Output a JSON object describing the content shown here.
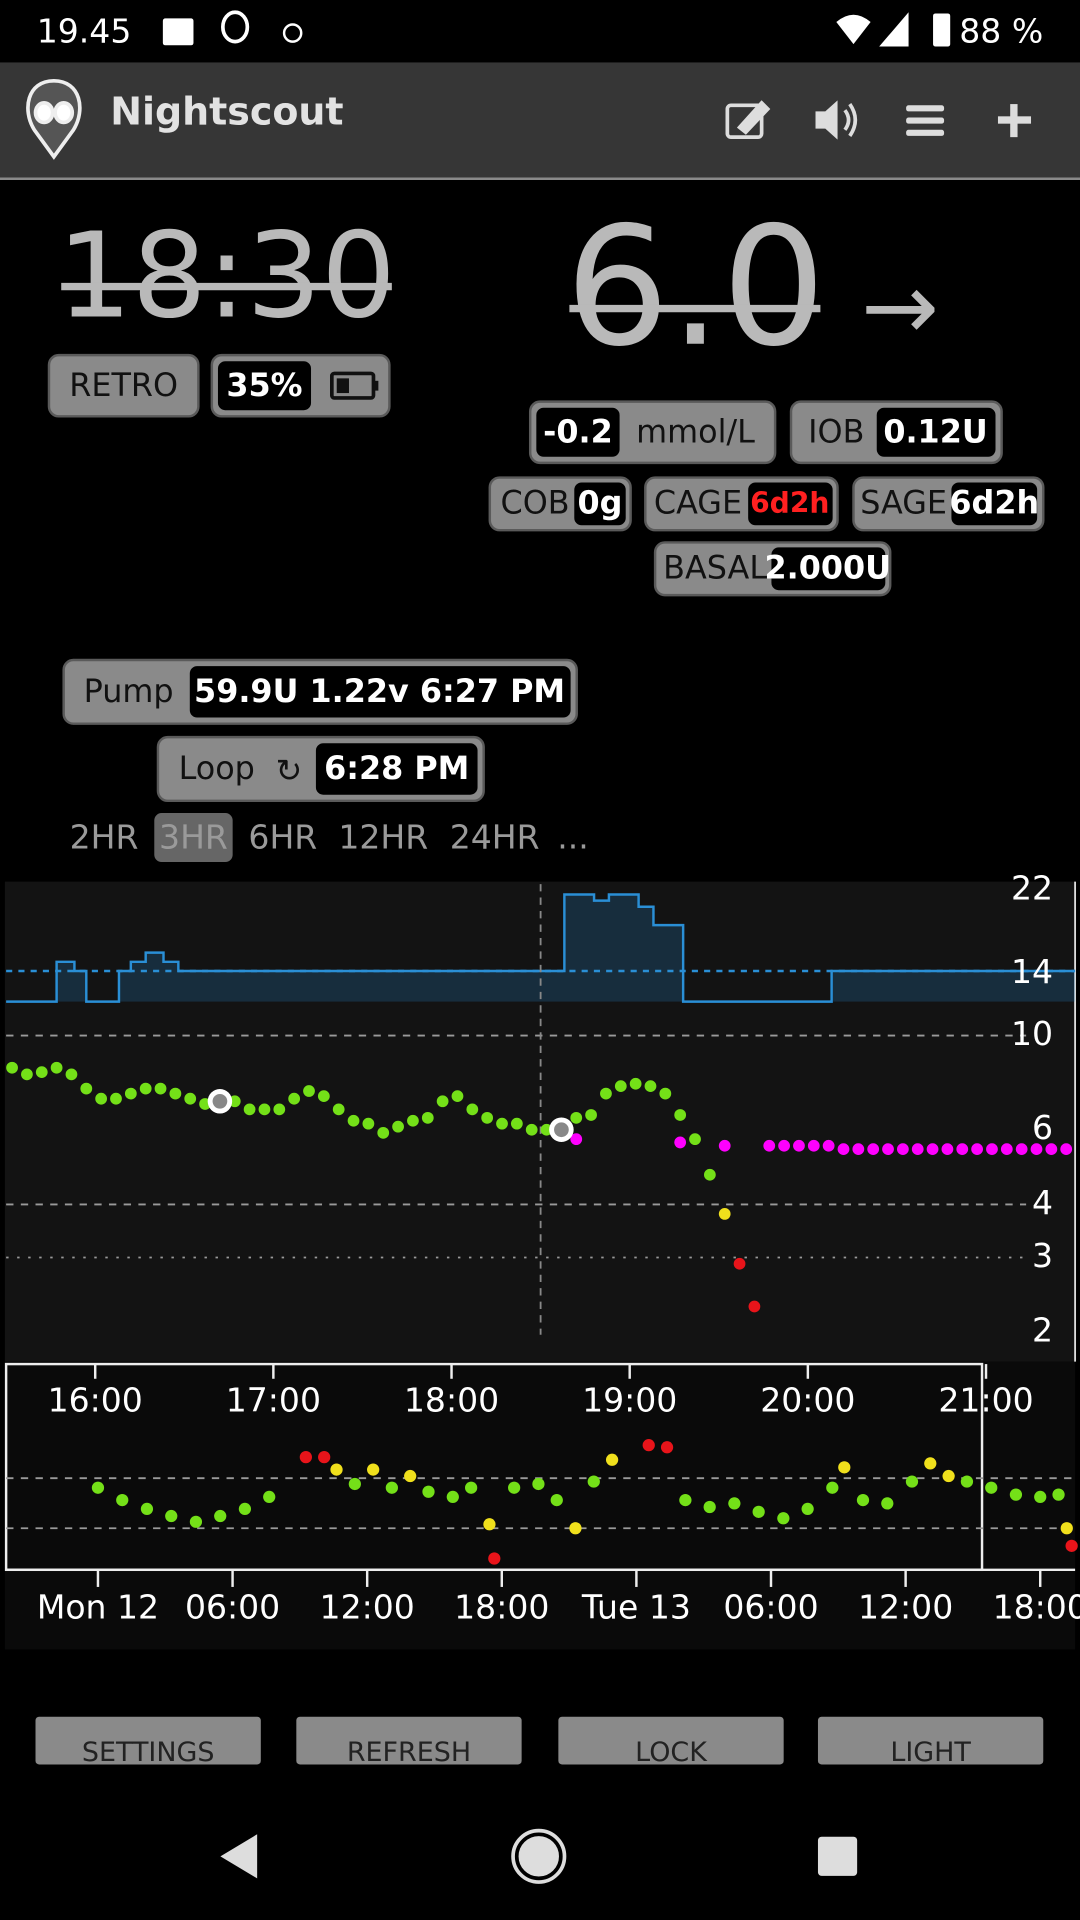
{
  "status_bar": {
    "time": "19.45",
    "battery": "88 %"
  },
  "header": {
    "title": "Nightscout"
  },
  "clock": {
    "time": "18:30",
    "mode": "RETRO",
    "uploader_battery": "35%"
  },
  "bg": {
    "value": "6.0",
    "direction": "→",
    "delta": "-0.2",
    "units": "mmol/L"
  },
  "pills": {
    "iob": {
      "label": "IOB",
      "value": "0.12U"
    },
    "cob": {
      "label": "COB",
      "value": "0g"
    },
    "cage": {
      "label": "CAGE",
      "value": "6d2h"
    },
    "sage": {
      "label": "SAGE",
      "value": "6d2h"
    },
    "basal": {
      "label": "BASAL",
      "value": "2.000U"
    },
    "pump": {
      "label": "Pump",
      "value": "59.9U 1.22v 6:27 PM"
    },
    "loop": {
      "label": "Loop",
      "symbol": "↻",
      "value": "6:28 PM"
    }
  },
  "range_buttons": {
    "items": [
      "2HR",
      "3HR",
      "6HR",
      "12HR",
      "24HR",
      "..."
    ],
    "selected": 1
  },
  "buttons": [
    "SETTINGS",
    "REFRESH",
    "LOCK",
    "LIGHT"
  ],
  "chart_data": [
    {
      "type": "scatter",
      "log_scale": true,
      "xlim": [
        "15:30",
        "21:30"
      ],
      "xticks": [
        "16:00",
        "17:00",
        "18:00",
        "19:00",
        "20:00",
        "21:00"
      ],
      "ylim": [
        2,
        22
      ],
      "yticks": [
        22,
        14,
        10,
        6,
        4,
        3,
        2
      ],
      "grid_dashed": [
        10,
        4
      ],
      "grid_dotted": [
        3
      ],
      "now": "18:30",
      "series": [
        {
          "color": "#74e018",
          "x": [
            "15:32",
            "15:37",
            "15:42",
            "15:47",
            "15:52",
            "15:57",
            "16:02",
            "16:07",
            "16:12",
            "16:17",
            "16:22",
            "16:27",
            "16:32",
            "16:37",
            "16:42",
            "16:47",
            "16:52",
            "16:57",
            "17:02",
            "17:07",
            "17:12",
            "17:17",
            "17:22",
            "17:27",
            "17:32",
            "17:37",
            "17:42",
            "17:47",
            "17:52",
            "17:57",
            "18:02",
            "18:07",
            "18:12",
            "18:17",
            "18:22",
            "18:27",
            "18:32",
            "18:37",
            "18:42",
            "18:47",
            "18:52",
            "18:57",
            "19:02",
            "19:07",
            "19:12",
            "19:17",
            "19:22",
            "19:27"
          ],
          "values": [
            8.4,
            8.1,
            8.2,
            8.4,
            8.1,
            7.5,
            7.1,
            7.1,
            7.3,
            7.5,
            7.5,
            7.3,
            7.1,
            6.9,
            7.0,
            7.0,
            6.7,
            6.7,
            6.7,
            7.1,
            7.4,
            7.2,
            6.7,
            6.3,
            6.2,
            5.9,
            6.1,
            6.3,
            6.4,
            7.0,
            7.2,
            6.7,
            6.4,
            6.2,
            6.2,
            6.0,
            6.0,
            6.0,
            6.4,
            6.5,
            7.3,
            7.6,
            7.7,
            7.6,
            7.3,
            6.5,
            5.7,
            4.7
          ]
        },
        {
          "color": "#f0e01c",
          "x": [
            "19:32"
          ],
          "values": [
            3.8
          ]
        },
        {
          "color": "#e8141a",
          "x": [
            "19:37",
            "19:42"
          ],
          "values": [
            2.9,
            2.3
          ]
        },
        {
          "color": "#ff00ff",
          "x": [
            "18:42",
            "19:17",
            "19:32",
            "19:47",
            "19:52",
            "19:57",
            "20:02",
            "20:07",
            "20:12",
            "20:17",
            "20:22",
            "20:27",
            "20:32",
            "20:37",
            "20:42",
            "20:47",
            "20:52",
            "20:57",
            "21:02",
            "21:07",
            "21:12",
            "21:17",
            "21:22",
            "21:27"
          ],
          "values": [
            5.7,
            5.6,
            5.5,
            5.5,
            5.5,
            5.5,
            5.5,
            5.5,
            5.4,
            5.4,
            5.4,
            5.4,
            5.4,
            5.4,
            5.4,
            5.4,
            5.4,
            5.4,
            5.4,
            5.4,
            5.4,
            5.4,
            5.4,
            5.4
          ]
        }
      ],
      "treatments": {
        "x": [
          "16:42",
          "18:37"
        ],
        "values": [
          7.0,
          6.0
        ]
      },
      "basal": {
        "color": "#2a8fd6",
        "ylim": [
          0,
          8
        ],
        "scheduled": 2.0,
        "x": [
          "15:30",
          "15:47",
          "15:53",
          "15:57",
          "16:08",
          "16:12",
          "16:17",
          "16:23",
          "16:28",
          "18:38",
          "18:48",
          "18:53",
          "19:03",
          "19:08",
          "19:18",
          "20:08"
        ],
        "values": [
          0,
          2.6,
          2.0,
          0,
          2.0,
          2.6,
          3.2,
          2.6,
          2.0,
          7.0,
          6.6,
          7.0,
          6.2,
          5.0,
          0,
          2.0
        ]
      }
    },
    {
      "type": "scatter",
      "log_scale": true,
      "xlim": [
        "Mon 12 00:00",
        "Tue 13 19:30"
      ],
      "xticks": [
        {
          "value": "Mon 12 00:00",
          "label": "Mon 12"
        },
        {
          "value": "Mon 12 06:00",
          "label": "06:00"
        },
        {
          "value": "Mon 12 12:00",
          "label": "12:00"
        },
        {
          "value": "Mon 12 18:00",
          "label": "18:00"
        },
        {
          "value": "Tue 13 00:00",
          "label": "Tue 13"
        },
        {
          "value": "Tue 13 06:00",
          "label": "06:00"
        },
        {
          "value": "Tue 13 12:00",
          "label": "12:00"
        },
        {
          "value": "Tue 13 18:00",
          "label": "18:00"
        }
      ],
      "ylim": [
        2,
        22
      ],
      "grid_dashed": [
        10,
        4
      ],
      "series": [
        {
          "color": "#74e018",
          "x": [
            "Mon 12 00:00",
            "Mon 12 01:05",
            "Mon 12 02:11",
            "Mon 12 03:16",
            "Mon 12 04:22",
            "Mon 12 05:27",
            "Mon 12 06:33",
            "Mon 12 07:38",
            "Mon 12 11:27",
            "Mon 12 13:06",
            "Mon 12 14:44",
            "Mon 12 15:49",
            "Mon 12 16:38",
            "Mon 12 18:33",
            "Mon 12 19:38",
            "Mon 12 20:27",
            "Mon 12 22:06",
            "Tue 13 02:11",
            "Tue 13 03:16",
            "Tue 13 04:22",
            "Tue 13 05:27",
            "Tue 13 06:33",
            "Tue 13 07:38",
            "Tue 13 08:44",
            "Tue 13 10:06",
            "Tue 13 11:11",
            "Tue 13 12:17",
            "Tue 13 14:44",
            "Tue 13 15:49",
            "Tue 13 16:55",
            "Tue 13 18:00",
            "Tue 13 18:49"
          ],
          "values": [
            8.4,
            6.7,
            5.7,
            5.0,
            4.5,
            5.0,
            5.7,
            7.1,
            9.0,
            8.4,
            7.8,
            7.1,
            8.4,
            8.4,
            9.0,
            6.7,
            9.4,
            6.7,
            5.9,
            6.3,
            5.4,
            4.8,
            5.7,
            8.4,
            6.7,
            6.3,
            9.4,
            9.4,
            8.4,
            7.4,
            7.1,
            7.4
          ]
        },
        {
          "color": "#f0e01c",
          "x": [
            "Mon 12 10:38",
            "Mon 12 12:16",
            "Mon 12 13:55",
            "Mon 12 17:27",
            "Mon 12 21:17",
            "Mon 12 22:55",
            "Tue 13 09:16",
            "Tue 13 13:06",
            "Tue 13 13:55",
            "Tue 13 19:11"
          ],
          "values": [
            11.7,
            11.7,
            10.4,
            4.3,
            4.0,
            14.0,
            12.2,
            13.1,
            10.4,
            4.0
          ]
        },
        {
          "color": "#e8141a",
          "x": [
            "Mon 12 09:16",
            "Mon 12 10:05",
            "Mon 12 17:40",
            "Tue 13 00:33",
            "Tue 13 01:22",
            "Tue 13 19:24"
          ],
          "values": [
            14.7,
            14.7,
            2.3,
            18.3,
            17.6,
            2.9
          ]
        }
      ]
    }
  ]
}
